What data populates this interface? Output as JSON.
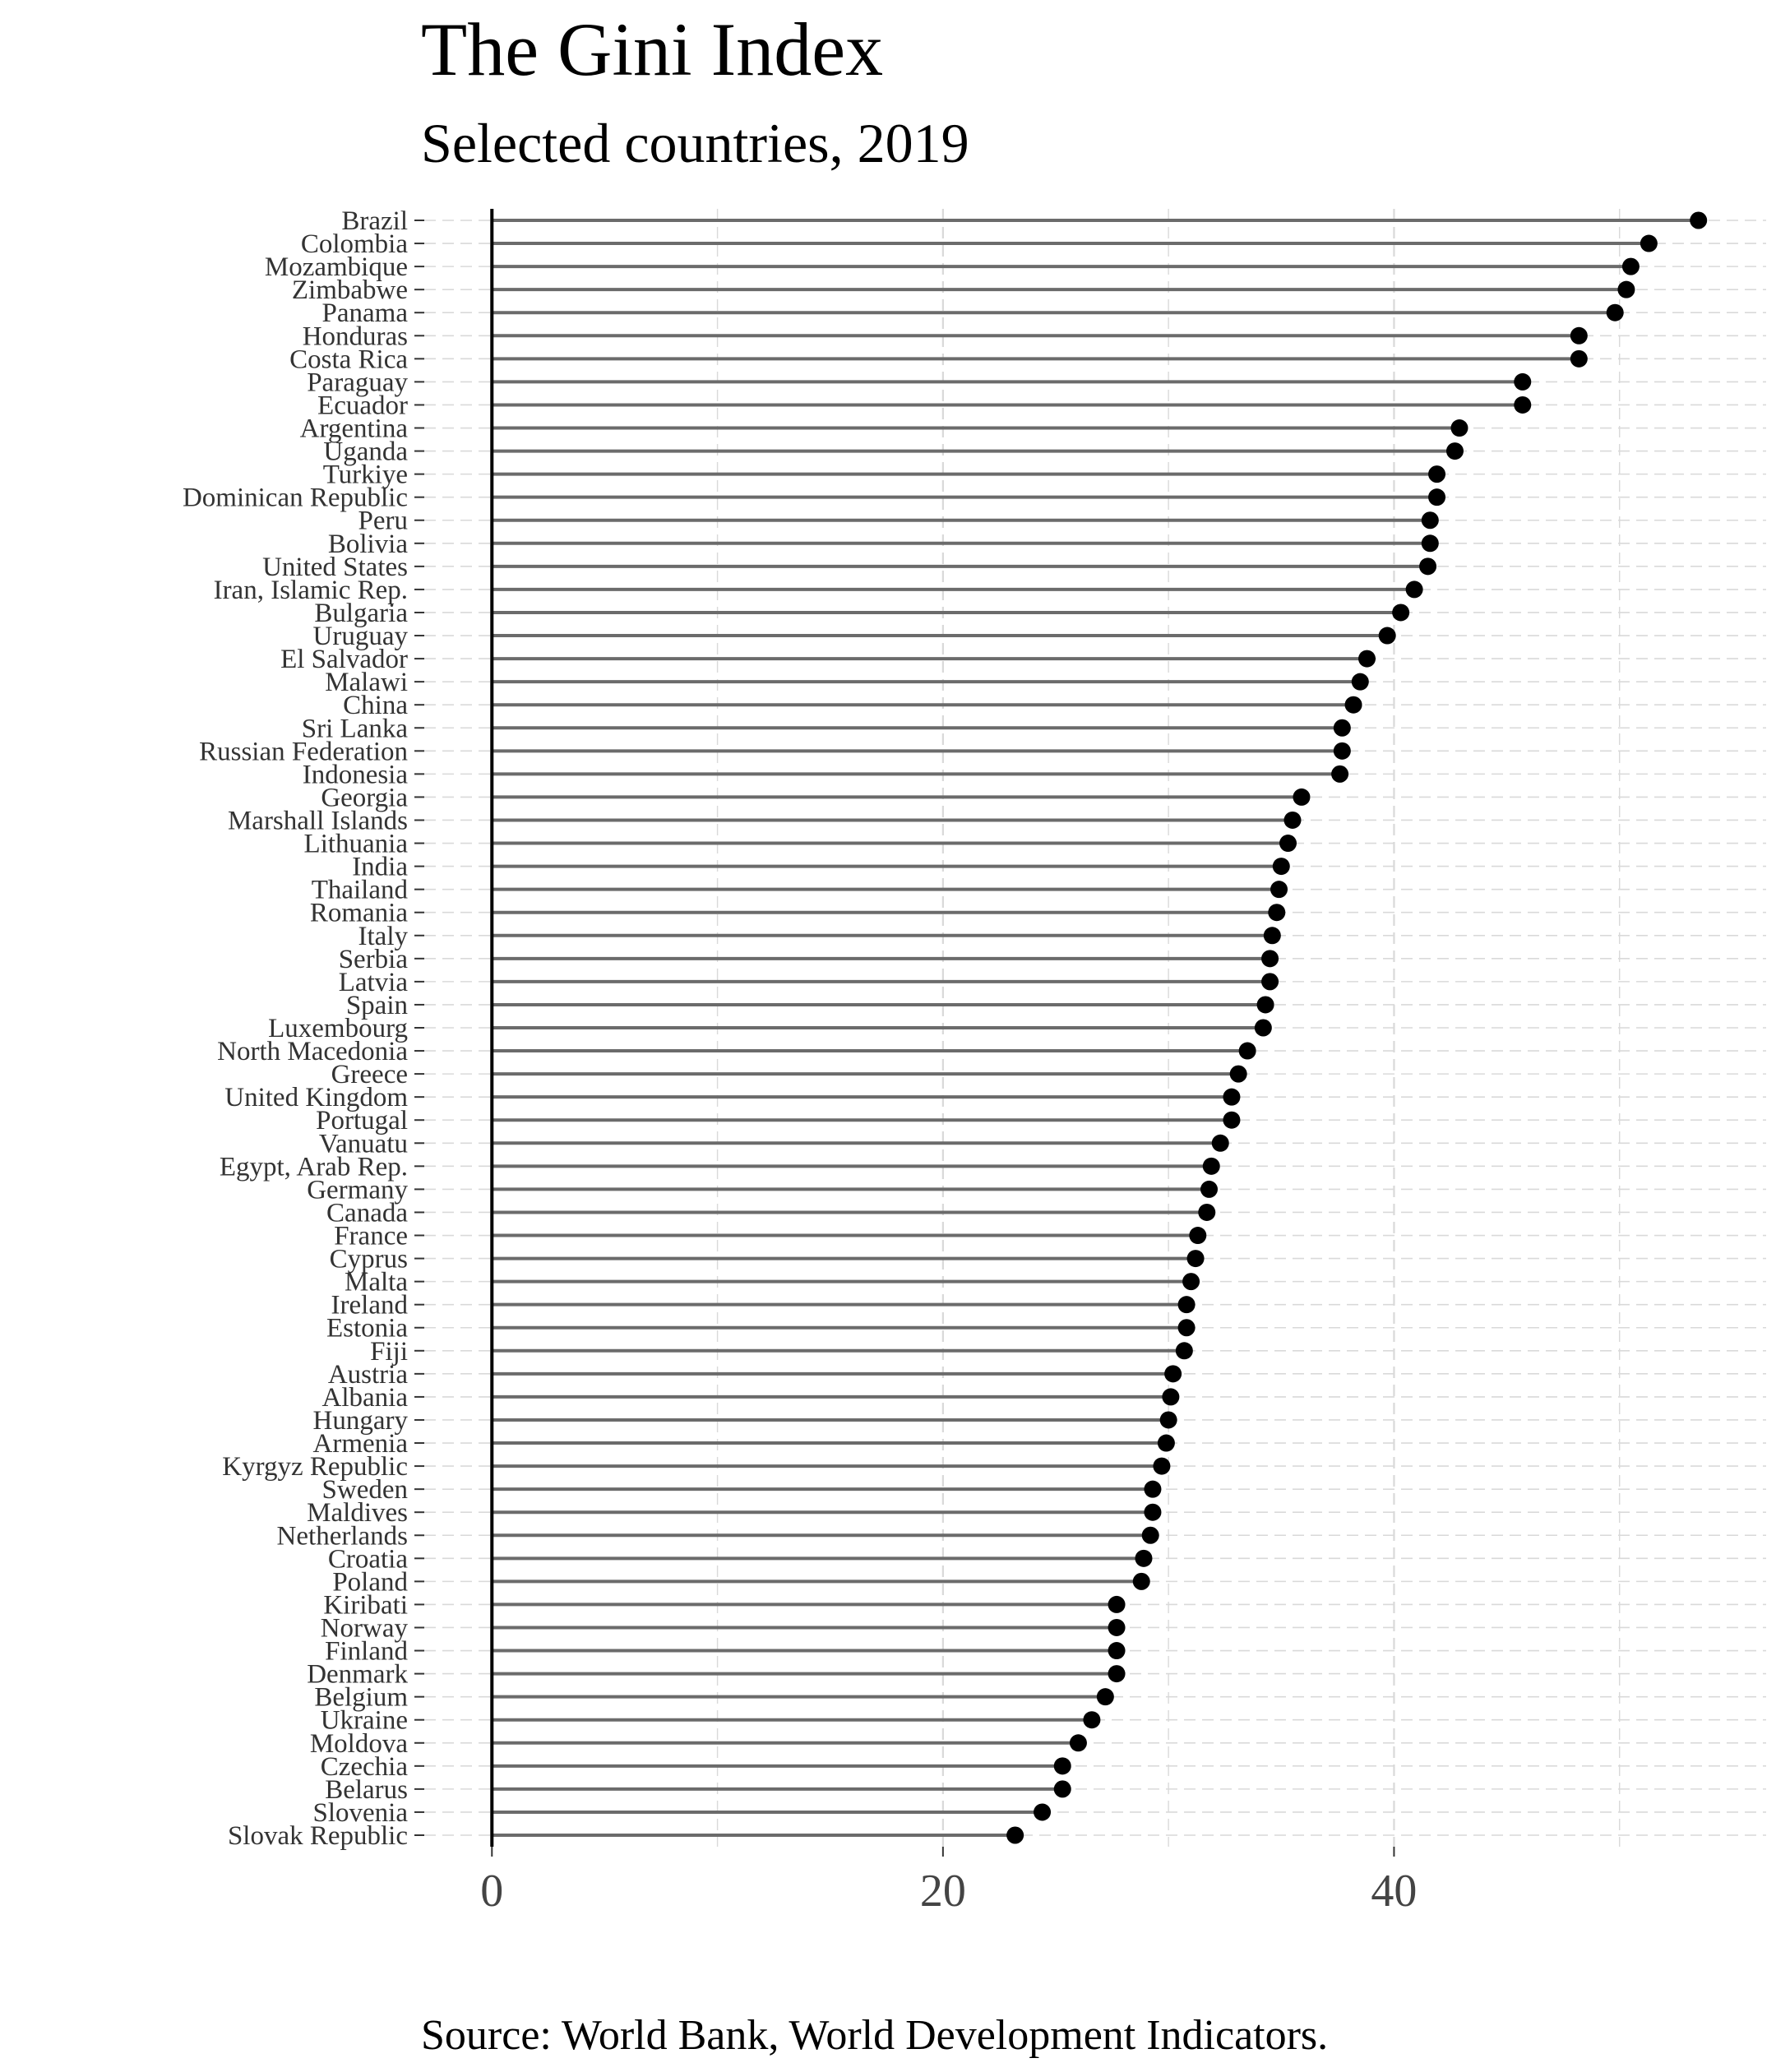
{
  "chart_data": {
    "type": "lollipop",
    "title": "The Gini Index",
    "subtitle": "Selected countries, 2019",
    "caption": "Source: World Bank, World Development Indicators.",
    "xlabel": "",
    "ylabel": "",
    "xlim": [
      -3,
      56.5
    ],
    "x_ticks": [
      0,
      20,
      40
    ],
    "grid": {
      "major_x": true,
      "minor_x": true,
      "y": true,
      "style": "dashed"
    },
    "legend": "none",
    "colors": {
      "segment": "#6b6b6b",
      "point": "#000000",
      "zero_line": "#000000",
      "grid": "#d9d9d9"
    },
    "categories": [
      "Brazil",
      "Colombia",
      "Mozambique",
      "Zimbabwe",
      "Panama",
      "Honduras",
      "Costa Rica",
      "Paraguay",
      "Ecuador",
      "Argentina",
      "Uganda",
      "Turkiye",
      "Dominican Republic",
      "Peru",
      "Bolivia",
      "United States",
      "Iran, Islamic Rep.",
      "Bulgaria",
      "Uruguay",
      "El Salvador",
      "Malawi",
      "China",
      "Sri Lanka",
      "Russian Federation",
      "Indonesia",
      "Georgia",
      "Marshall Islands",
      "Lithuania",
      "India",
      "Thailand",
      "Romania",
      "Italy",
      "Serbia",
      "Latvia",
      "Spain",
      "Luxembourg",
      "North Macedonia",
      "Greece",
      "United Kingdom",
      "Portugal",
      "Vanuatu",
      "Egypt, Arab Rep.",
      "Germany",
      "Canada",
      "France",
      "Cyprus",
      "Malta",
      "Ireland",
      "Estonia",
      "Fiji",
      "Austria",
      "Albania",
      "Hungary",
      "Armenia",
      "Kyrgyz Republic",
      "Sweden",
      "Maldives",
      "Netherlands",
      "Croatia",
      "Poland",
      "Kiribati",
      "Norway",
      "Finland",
      "Denmark",
      "Belgium",
      "Ukraine",
      "Moldova",
      "Czechia",
      "Belarus",
      "Slovenia",
      "Slovak Republic"
    ],
    "values": [
      53.5,
      51.3,
      50.5,
      50.3,
      49.8,
      48.2,
      48.2,
      45.7,
      45.7,
      42.9,
      42.7,
      41.9,
      41.9,
      41.6,
      41.6,
      41.5,
      40.9,
      40.3,
      39.7,
      38.8,
      38.5,
      38.2,
      37.7,
      37.7,
      37.6,
      35.9,
      35.5,
      35.3,
      35.0,
      34.9,
      34.8,
      34.6,
      34.5,
      34.5,
      34.3,
      34.2,
      33.5,
      33.1,
      32.8,
      32.8,
      32.3,
      31.9,
      31.8,
      31.7,
      31.3,
      31.2,
      31.0,
      30.8,
      30.8,
      30.7,
      30.2,
      30.1,
      30.0,
      29.9,
      29.7,
      29.3,
      29.3,
      29.2,
      28.9,
      28.8,
      27.7,
      27.7,
      27.7,
      27.7,
      27.2,
      26.6,
      26.0,
      25.3,
      25.3,
      24.4,
      23.2
    ]
  }
}
